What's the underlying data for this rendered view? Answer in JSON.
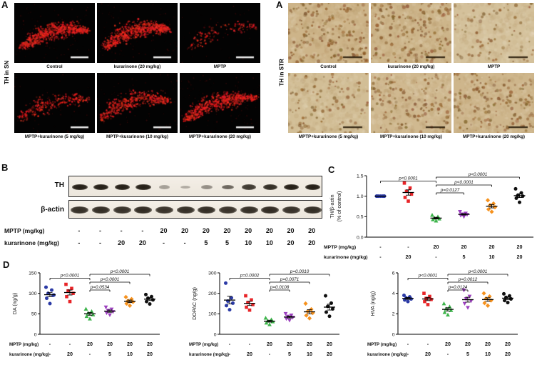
{
  "panelA": {
    "sn": {
      "panel_letter": "A",
      "axis_label": "TH in SN",
      "images": [
        {
          "label": "Control",
          "density": 0.95
        },
        {
          "label": "kurarinone (20 mg/kg)",
          "density": 0.9
        },
        {
          "label": "MPTP",
          "density": 0.15
        },
        {
          "label": "MPTP+kurarinone (5 mg/kg)",
          "density": 0.3
        },
        {
          "label": "MPTP+kurarinone (10 mg/kg)",
          "density": 0.55
        },
        {
          "label": "MPTP+kurarinone (20 mg/kg)",
          "density": 0.85
        }
      ]
    },
    "str": {
      "panel_letter": "A",
      "axis_label": "TH in STR",
      "images": [
        {
          "label": "Control",
          "density": 0.9
        },
        {
          "label": "kurarinone (20 mg/kg)",
          "density": 0.85
        },
        {
          "label": "MPTP",
          "density": 0.3
        },
        {
          "label": "MPTP+kurarinone (5 mg/kg)",
          "density": 0.45
        },
        {
          "label": "MPTP+kurarinone (10 mg/kg)",
          "density": 0.65
        },
        {
          "label": "MPTP+kurarinone (20 mg/kg)",
          "density": 0.8
        }
      ]
    }
  },
  "panelB": {
    "panel_letter": "B",
    "band_labels": [
      "TH",
      "β-actin"
    ],
    "lane_rows": [
      {
        "label": "MPTP (mg/kg)",
        "values": [
          "-",
          "-",
          "-",
          "-",
          "20",
          "20",
          "20",
          "20",
          "20",
          "20",
          "20",
          "20"
        ]
      },
      {
        "label": "kurarinone (mg/kg)",
        "values": [
          "-",
          "-",
          "20",
          "20",
          "-",
          "-",
          "5",
          "5",
          "10",
          "10",
          "20",
          "20"
        ]
      }
    ],
    "th_band_intensity": [
      0.95,
      0.88,
      0.9,
      0.93,
      0.22,
      0.16,
      0.3,
      0.5,
      0.72,
      0.78,
      0.85,
      0.88
    ],
    "actin_band_intensity": [
      0.92,
      0.93,
      0.91,
      0.94,
      0.9,
      0.92,
      0.93,
      0.9,
      0.92,
      0.94,
      0.91,
      0.93
    ]
  },
  "panelC": {
    "panel_letter": "C"
  },
  "panelD": {
    "panel_letter": "D"
  },
  "chart_data": [
    {
      "id": "chartC",
      "type": "scatter",
      "ylabel_lines": [
        "TH/β-actin",
        "(% of control)"
      ],
      "ylim": [
        0,
        1.5
      ],
      "ytick_vals": [
        0,
        0.5,
        1.0,
        1.5
      ],
      "ytick_labels": [
        "0.0",
        "0.5",
        "1.0",
        "1.5"
      ],
      "groups": [
        {
          "name": "Control",
          "marker": "circle",
          "color": "#2b3aa5",
          "values": [
            1.0,
            1.0,
            1.0,
            1.0,
            1.0,
            1.0,
            1.0
          ]
        },
        {
          "name": "kurarinone (20 mg/kg)",
          "marker": "square",
          "color": "#e82427",
          "values": [
            0.88,
            0.97,
            1.05,
            1.12,
            1.2,
            1.32
          ]
        },
        {
          "name": "MPTP",
          "marker": "triangle",
          "color": "#3cb44a",
          "values": [
            0.4,
            0.43,
            0.45,
            0.47,
            0.5,
            0.54
          ]
        },
        {
          "name": "MPTP+kurarinone (5 mg/kg)",
          "marker": "triangle-down",
          "color": "#9c3fbf",
          "values": [
            0.5,
            0.53,
            0.55,
            0.56,
            0.58,
            0.62
          ]
        },
        {
          "name": "MPTP+kurarinone (10 mg/kg)",
          "marker": "diamond",
          "color": "#f6921e",
          "values": [
            0.62,
            0.68,
            0.73,
            0.78,
            0.82,
            0.9
          ]
        },
        {
          "name": "MPTP+kurarinone (20 mg/kg)",
          "marker": "circle",
          "color": "#111111",
          "values": [
            0.85,
            0.95,
            1.0,
            1.02,
            1.08,
            1.18
          ]
        }
      ],
      "x_rows": [
        {
          "label": "MPTP (mg/kg)",
          "values": [
            "-",
            "-",
            "20",
            "20",
            "20",
            "20"
          ]
        },
        {
          "label": "kurarinone (mg/kg)",
          "values": [
            "-",
            "20",
            "-",
            "5",
            "10",
            "20"
          ]
        }
      ],
      "brackets": [
        {
          "from": 1,
          "to": 3,
          "level": 2.5,
          "label": "p<0.0001"
        },
        {
          "from": 3,
          "to": 6,
          "level": 3,
          "label": "p<0.0001"
        },
        {
          "from": 3,
          "to": 5,
          "level": 2,
          "label": "p<0.0001"
        },
        {
          "from": 3,
          "to": 4,
          "level": 1,
          "label": "p=0.0127"
        }
      ]
    },
    {
      "id": "chartD1",
      "type": "scatter",
      "ylabel_lines": [
        "DA (ng/g)"
      ],
      "ylim": [
        0,
        150
      ],
      "ytick_vals": [
        0,
        50,
        100,
        150
      ],
      "ytick_labels": [
        "0",
        "50",
        "100",
        "150"
      ],
      "groups": [
        {
          "name": "Control",
          "marker": "circle",
          "color": "#2b3aa5",
          "values": [
            75,
            88,
            95,
            100,
            108,
            115,
            96
          ]
        },
        {
          "name": "kurarinone (20 mg/kg)",
          "marker": "square",
          "color": "#e82427",
          "values": [
            80,
            92,
            100,
            106,
            112,
            122
          ]
        },
        {
          "name": "MPTP",
          "marker": "triangle",
          "color": "#3cb44a",
          "values": [
            38,
            44,
            48,
            52,
            56,
            62
          ]
        },
        {
          "name": "MPTP+kurarinone (5 mg/kg)",
          "marker": "triangle-down",
          "color": "#9c3fbf",
          "values": [
            47,
            52,
            55,
            58,
            61,
            66
          ]
        },
        {
          "name": "MPTP+kurarinone (10 mg/kg)",
          "marker": "diamond",
          "color": "#f6921e",
          "values": [
            70,
            75,
            79,
            82,
            86,
            91
          ]
        },
        {
          "name": "MPTP+kurarinone (20 mg/kg)",
          "marker": "circle",
          "color": "#111111",
          "values": [
            74,
            80,
            84,
            88,
            92,
            97
          ]
        }
      ],
      "x_rows": [
        {
          "label": "MPTP (mg/kg)",
          "values": [
            "-",
            "-",
            "20",
            "20",
            "20",
            "20"
          ]
        },
        {
          "label": "kurarinone (mg/kg)",
          "values": [
            "-",
            "20",
            "-",
            "5",
            "10",
            "20"
          ]
        }
      ],
      "brackets": [
        {
          "from": 1,
          "to": 3,
          "level": 2.5,
          "label": "p<0.0001"
        },
        {
          "from": 3,
          "to": 6,
          "level": 3,
          "label": "p<0.0001"
        },
        {
          "from": 3,
          "to": 5,
          "level": 2,
          "label": "p<0.0001"
        },
        {
          "from": 3,
          "to": 4,
          "level": 1,
          "label": "p=0.0534"
        }
      ]
    },
    {
      "id": "chartD2",
      "type": "scatter",
      "ylabel_lines": [
        "DOPAC (ng/g)"
      ],
      "ylim": [
        0,
        300
      ],
      "ytick_vals": [
        0,
        100,
        200,
        300
      ],
      "ytick_labels": [
        "0",
        "100",
        "200",
        "300"
      ],
      "groups": [
        {
          "name": "Control",
          "marker": "circle",
          "color": "#2b3aa5",
          "values": [
            120,
            140,
            152,
            162,
            178,
            250
          ]
        },
        {
          "name": "kurarinone (20 mg/kg)",
          "marker": "square",
          "color": "#e82427",
          "values": [
            118,
            132,
            145,
            155,
            168,
            188
          ]
        },
        {
          "name": "MPTP",
          "marker": "triangle",
          "color": "#3cb44a",
          "values": [
            48,
            56,
            62,
            66,
            72,
            80
          ]
        },
        {
          "name": "MPTP+kurarinone (5 mg/kg)",
          "marker": "triangle-down",
          "color": "#9c3fbf",
          "values": [
            68,
            76,
            82,
            87,
            93,
            100
          ]
        },
        {
          "name": "MPTP+kurarinone (10 mg/kg)",
          "marker": "diamond",
          "color": "#f6921e",
          "values": [
            78,
            92,
            104,
            112,
            122,
            150
          ]
        },
        {
          "name": "MPTP+kurarinone (20 mg/kg)",
          "marker": "circle",
          "color": "#111111",
          "values": [
            88,
            108,
            124,
            136,
            152,
            188
          ]
        }
      ],
      "x_rows": [
        {
          "label": "MPTP (mg/kg)",
          "values": [
            "-",
            "-",
            "20",
            "20",
            "20",
            "20"
          ]
        },
        {
          "label": "kurarinone (mg/kg)",
          "values": [
            "-",
            "20",
            "-",
            "5",
            "10",
            "20"
          ]
        }
      ],
      "brackets": [
        {
          "from": 1,
          "to": 3,
          "level": 2.5,
          "label": "p=0.0002"
        },
        {
          "from": 3,
          "to": 6,
          "level": 3,
          "label": "p=0.0010"
        },
        {
          "from": 3,
          "to": 5,
          "level": 2,
          "label": "p=0.0071"
        },
        {
          "from": 3,
          "to": 4,
          "level": 1,
          "label": "p=0.0108"
        }
      ]
    },
    {
      "id": "chartD3",
      "type": "scatter",
      "ylabel_lines": [
        "HVA (ng/g)"
      ],
      "ylim": [
        0,
        6
      ],
      "ytick_vals": [
        0,
        2,
        4,
        6
      ],
      "ytick_labels": [
        "0",
        "2",
        "4",
        "6"
      ],
      "groups": [
        {
          "name": "Control",
          "marker": "circle",
          "color": "#2b3aa5",
          "values": [
            3.2,
            3.35,
            3.45,
            3.55,
            3.65,
            3.8
          ]
        },
        {
          "name": "kurarinone (20 mg/kg)",
          "marker": "square",
          "color": "#e82427",
          "values": [
            2.9,
            3.2,
            3.4,
            3.5,
            3.7,
            4.0
          ]
        },
        {
          "name": "MPTP",
          "marker": "triangle",
          "color": "#3cb44a",
          "values": [
            1.9,
            2.15,
            2.35,
            2.5,
            2.7,
            3.0
          ]
        },
        {
          "name": "MPTP+kurarinone (5 mg/kg)",
          "marker": "triangle-down",
          "color": "#9c3fbf",
          "values": [
            2.6,
            3.0,
            3.25,
            3.45,
            3.7,
            4.3
          ]
        },
        {
          "name": "MPTP+kurarinone (10 mg/kg)",
          "marker": "diamond",
          "color": "#f6921e",
          "values": [
            2.8,
            3.05,
            3.3,
            3.5,
            3.7,
            4.0
          ]
        },
        {
          "name": "MPTP+kurarinone (20 mg/kg)",
          "marker": "circle",
          "color": "#111111",
          "values": [
            3.1,
            3.3,
            3.45,
            3.6,
            3.75,
            3.95
          ]
        }
      ],
      "x_rows": [
        {
          "label": "MPTP (mg/kg)",
          "values": [
            "-",
            "-",
            "20",
            "20",
            "20",
            "20"
          ]
        },
        {
          "label": "kurarinone (mg/kg)",
          "values": [
            "-",
            "20",
            "-",
            "5",
            "10",
            "20"
          ]
        }
      ],
      "brackets": [
        {
          "from": 1,
          "to": 3,
          "level": 2.5,
          "label": "p<0.0001"
        },
        {
          "from": 3,
          "to": 6,
          "level": 3,
          "label": "p<0.0001"
        },
        {
          "from": 3,
          "to": 5,
          "level": 2,
          "label": "p=0.0012"
        },
        {
          "from": 3,
          "to": 4,
          "level": 1,
          "label": "p=0.0124"
        }
      ]
    }
  ]
}
